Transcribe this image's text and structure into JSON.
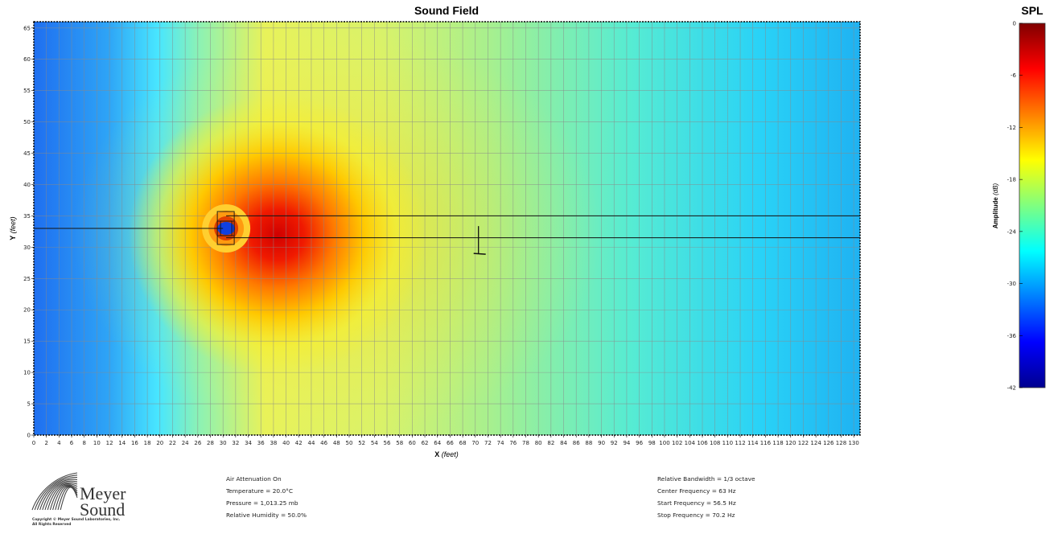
{
  "chart_data": [
    {
      "type": "heatmap",
      "title": "Sound Field",
      "xlabel": "X",
      "xlabel_unit": "(feet)",
      "ylabel": "Y",
      "ylabel_unit": "(feet)",
      "xlim": [
        0,
        131
      ],
      "ylim": [
        0,
        66
      ],
      "x_ticks": [
        0,
        2,
        4,
        6,
        8,
        10,
        12,
        14,
        16,
        18,
        20,
        22,
        24,
        26,
        28,
        30,
        32,
        34,
        36,
        38,
        40,
        42,
        44,
        46,
        48,
        50,
        52,
        54,
        56,
        58,
        60,
        62,
        64,
        66,
        68,
        70,
        72,
        74,
        76,
        78,
        80,
        82,
        84,
        86,
        88,
        90,
        92,
        94,
        96,
        98,
        100,
        102,
        104,
        106,
        108,
        110,
        112,
        114,
        116,
        118,
        120,
        122,
        124,
        126,
        128,
        130
      ],
      "y_ticks": [
        0,
        5,
        10,
        15,
        20,
        25,
        30,
        35,
        40,
        45,
        50,
        55,
        60,
        65
      ],
      "grid": true,
      "colorscale": "jet",
      "source": {
        "x": 30.5,
        "y": 33
      },
      "listener": {
        "x": 70.5,
        "y": 29
      },
      "reference_lines": [
        {
          "from": [
            0,
            33
          ],
          "to": [
            30,
            33
          ]
        },
        {
          "from": [
            30.5,
            35
          ],
          "to": [
            131,
            35
          ]
        },
        {
          "from": [
            30.5,
            31.5
          ],
          "to": [
            131,
            31.5
          ]
        }
      ]
    },
    {
      "type": "colorbar",
      "title": "SPL",
      "ylabel": "Amplitude",
      "ylabel_unit": "(dB)",
      "range": [
        -42,
        0
      ],
      "ticks": [
        0,
        -6,
        -12,
        -18,
        -24,
        -30,
        -36,
        -42
      ]
    }
  ],
  "info_left": [
    "Air Attenuation On",
    "Temperature = 20.0°C",
    "Pressure = 1,013.25  mb",
    "Relative Humidity = 50.0%"
  ],
  "info_right": [
    "Relative Bandwidth = 1/3 octave",
    "Center Frequency = 63 Hz",
    "Start Frequency = 56.5 Hz",
    "Stop Frequency = 70.2 Hz"
  ],
  "logo": {
    "word1": "Meyer",
    "word2": "Sound",
    "copyright1": "Copyright © Meyer Sound Laboratories, Inc.",
    "copyright2": "All Rights Reserved"
  }
}
